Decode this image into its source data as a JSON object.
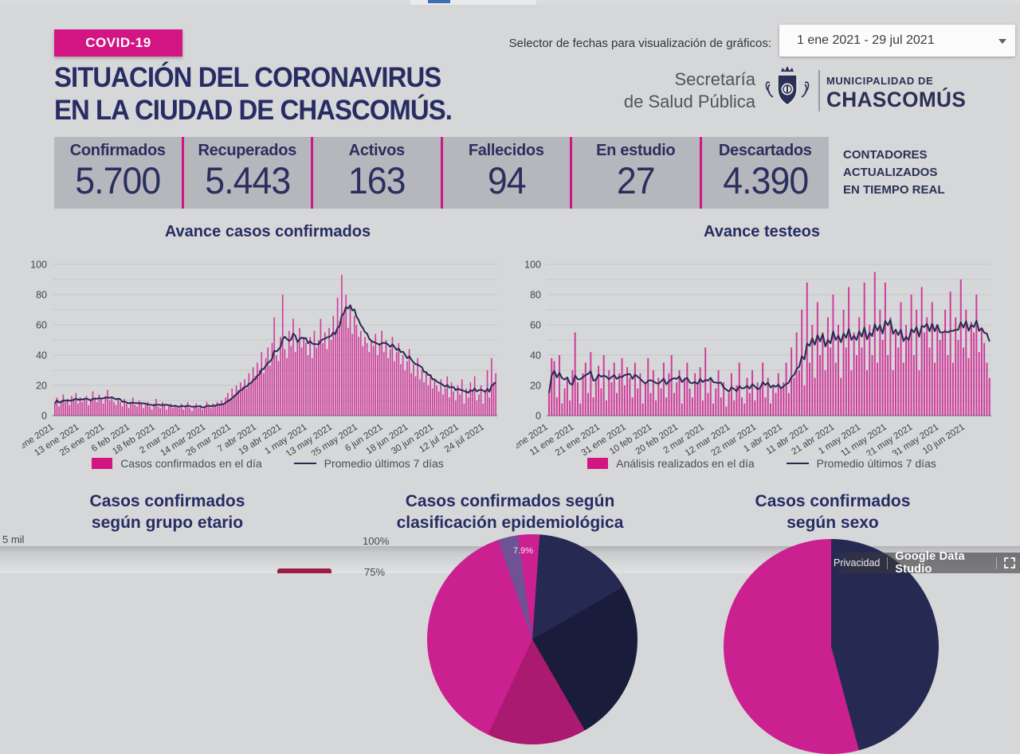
{
  "header": {
    "badge": "COVID-19",
    "title_line1": "SITUACIÓN DEL CORONAVIRUS",
    "title_line2": "EN LA CIUDAD DE CHASCOMÚS.",
    "date_selector_label": "Selector de fechas para visualización de gráficos:",
    "date_range": "1 ene 2021 - 29 jul 2021",
    "org_line1": "Secretaría",
    "org_line2": "de Salud Pública",
    "muni_line1": "MUNICIPALIDAD DE",
    "muni_line2": "CHASCOMÚS"
  },
  "counters": {
    "items": [
      {
        "label": "Confirmados",
        "value": "5.700"
      },
      {
        "label": "Recuperados",
        "value": "5.443"
      },
      {
        "label": "Activos",
        "value": "163"
      },
      {
        "label": "Fallecidos",
        "value": "94"
      },
      {
        "label": "En estudio",
        "value": "27"
      },
      {
        "label": "Descartados",
        "value": "4.390"
      }
    ],
    "note": [
      "CONTADORES",
      "ACTUALIZADOS",
      "EN TIEMPO REAL"
    ]
  },
  "colors": {
    "accent_pink": "#d31583",
    "bar_pink": "#d02b95",
    "line_navy": "#272b50",
    "title_navy": "#272c63",
    "pie_magenta": "#cb2090",
    "pie_navy": "#262a52",
    "pie_dark_navy": "#191c3a",
    "pie_violet": "#6e5295",
    "pie_dark_magenta": "#a91a70",
    "age_bar_maroon": "#9c1c44"
  },
  "chart_data": [
    {
      "type": "bar",
      "title": "Avance casos confirmados",
      "legend": [
        "Casos confirmados en el día",
        "Promedio últimos 7 días"
      ],
      "ylim": [
        0,
        100
      ],
      "yticks": [
        0,
        20,
        40,
        60,
        80,
        100
      ],
      "grid": true,
      "overlay_line": "7-day trailing average of values",
      "tick_interval_days": 12,
      "x_tick_labels": [
        "1 ene 2021",
        "13 ene 2021",
        "25 ene 2021",
        "6 feb 2021",
        "18 feb 2021",
        "2 mar 2021",
        "14 mar 2021",
        "26 mar 2021",
        "7 abr 2021",
        "19 abr 2021",
        "1 may 2021",
        "13 may 2021",
        "25 may 2021",
        "6 jun 2021",
        "18 jun 2021",
        "30 jun 2021",
        "12 jul 2021",
        "24 jul 2021"
      ],
      "values": [
        8,
        12,
        6,
        10,
        14,
        9,
        11,
        7,
        13,
        10,
        15,
        8,
        12,
        9,
        11,
        13,
        7,
        10,
        16,
        12,
        9,
        14,
        11,
        8,
        13,
        17,
        10,
        12,
        9,
        7,
        11,
        9,
        6,
        11,
        8,
        5,
        9,
        12,
        7,
        6,
        10,
        8,
        5,
        7,
        9,
        6,
        4,
        8,
        11,
        6,
        5,
        9,
        7,
        4,
        6,
        8,
        5,
        7,
        6,
        5,
        8,
        4,
        7,
        9,
        5,
        3,
        6,
        8,
        5,
        7,
        4,
        6,
        9,
        7,
        5,
        8,
        6,
        9,
        7,
        10,
        8,
        12,
        15,
        11,
        18,
        14,
        20,
        17,
        22,
        19,
        24,
        18,
        28,
        22,
        32,
        26,
        35,
        30,
        42,
        28,
        38,
        45,
        33,
        48,
        65,
        40,
        36,
        52,
        80,
        44,
        38,
        56,
        46,
        64,
        42,
        50,
        58,
        45,
        52,
        48,
        40,
        52,
        38,
        56,
        45,
        50,
        64,
        48,
        55,
        44,
        58,
        50,
        66,
        56,
        78,
        62,
        93,
        68,
        80,
        58,
        72,
        54,
        66,
        60,
        52,
        56,
        46,
        52,
        48,
        42,
        50,
        46,
        54,
        40,
        48,
        56,
        42,
        50,
        38,
        44,
        52,
        36,
        42,
        48,
        34,
        40,
        30,
        36,
        44,
        28,
        34,
        26,
        38,
        24,
        30,
        22,
        28,
        20,
        26,
        18,
        24,
        20,
        16,
        24,
        14,
        18,
        26,
        12,
        22,
        16,
        10,
        20,
        14,
        24,
        8,
        18,
        12,
        22,
        16,
        26,
        10,
        14,
        20,
        8,
        16,
        30,
        12,
        38,
        22,
        28
      ]
    },
    {
      "type": "bar",
      "title": "Avance testeos",
      "legend": [
        "Análisis realizados en el día",
        "Promedio últimos 7 días"
      ],
      "ylim": [
        0,
        100
      ],
      "yticks": [
        0,
        20,
        40,
        60,
        80,
        100
      ],
      "grid": true,
      "overlay_line": "7-day trailing average of values",
      "tick_interval_days": 10,
      "x_tick_labels": [
        "1 ene 2021",
        "11 ene 2021",
        "21 ene 2021",
        "31 ene 2021",
        "10 feb 2021",
        "20 feb 2021",
        "2 mar 2021",
        "12 mar 2021",
        "22 mar 2021",
        "1 abr 2021",
        "11 abr 2021",
        "21 abr 2021",
        "1 may 2021",
        "11 may 2021",
        "21 may 2021",
        "31 may 2021",
        "10 jun 2021"
      ],
      "values": [
        15,
        38,
        36,
        12,
        40,
        8,
        18,
        25,
        10,
        30,
        55,
        22,
        8,
        28,
        35,
        15,
        42,
        12,
        25,
        33,
        18,
        40,
        10,
        30,
        22,
        35,
        15,
        28,
        38,
        20,
        32,
        25,
        12,
        35,
        18,
        28,
        8,
        22,
        38,
        15,
        30,
        10,
        25,
        18,
        35,
        12,
        28,
        40,
        15,
        22,
        30,
        8,
        25,
        35,
        18,
        12,
        28,
        20,
        32,
        10,
        45,
        15,
        25,
        8,
        18,
        30,
        12,
        22,
        6,
        15,
        28,
        10,
        20,
        35,
        12,
        8,
        25,
        15,
        30,
        10,
        22,
        18,
        35,
        12,
        25,
        8,
        20,
        15,
        28,
        18,
        22,
        35,
        15,
        45,
        25,
        55,
        30,
        70,
        20,
        88,
        35,
        60,
        25,
        75,
        40,
        55,
        30,
        65,
        45,
        80,
        35,
        60,
        25,
        70,
        45,
        85,
        30,
        55,
        40,
        65,
        45,
        88,
        30,
        60,
        40,
        95,
        35,
        70,
        50,
        88,
        40,
        65,
        30,
        55,
        45,
        75,
        35,
        60,
        50,
        80,
        40,
        70,
        30,
        85,
        55,
        65,
        45,
        75,
        35,
        60,
        50,
        55,
        70,
        40,
        82,
        35,
        65,
        50,
        90,
        45,
        70,
        38,
        62,
        55,
        80,
        42,
        58,
        48,
        35,
        25
      ]
    },
    {
      "type": "pie",
      "title": "Casos confirmados según clasificación epidemiológica",
      "visible_data_labels": [
        "7.9%"
      ],
      "visible_axis_labels": [
        "100%",
        "75%"
      ]
    },
    {
      "type": "pie",
      "title": "Casos confirmados según sexo"
    },
    {
      "type": "bar",
      "title": "Casos confirmados según grupo etario",
      "visible_axis_labels": [
        "5 mil"
      ]
    }
  ],
  "sections": {
    "age": {
      "line1": "Casos confirmados",
      "line2": "según grupo etario"
    },
    "epi": {
      "line1": "Casos confirmados según",
      "line2": "clasificación epidemiológica"
    },
    "sexo": {
      "line1": "Casos confirmados",
      "line2": "según sexo"
    }
  },
  "labels": {
    "five_mil": "5 mil",
    "pct100": "100%",
    "pct75": "75%",
    "pct79": "7.9%"
  },
  "footer": {
    "privacy": "Privacidad",
    "brand": "Google Data Studio"
  }
}
